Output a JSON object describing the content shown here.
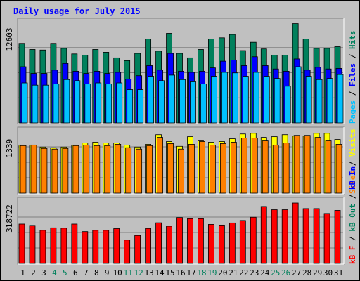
{
  "chart_data": {
    "type": "bar",
    "title": "Daily usage for July 2015",
    "categories": [
      "1",
      "2",
      "3",
      "4",
      "5",
      "6",
      "7",
      "8",
      "9",
      "10",
      "11",
      "12",
      "13",
      "14",
      "15",
      "16",
      "17",
      "18",
      "19",
      "20",
      "21",
      "22",
      "23",
      "24",
      "25",
      "26",
      "27",
      "28",
      "29",
      "30",
      "31"
    ],
    "weekend_days": [
      4,
      5,
      11,
      12,
      18,
      19,
      25,
      26
    ],
    "panels": [
      {
        "name": "hits-files-pages",
        "ymax_label": "12603",
        "ymax": 12603,
        "series": [
          {
            "name": "Hits",
            "color": "#00805c",
            "values": [
              9981,
              9213,
              9143,
              9981,
              9353,
              8654,
              8514,
              9213,
              8863,
              8165,
              7815,
              8724,
              10540,
              9003,
              11239,
              8724,
              8165,
              9213,
              10540,
              10680,
              11099,
              9074,
              10121,
              9283,
              8514,
              8514,
              12463,
              10540,
              9353,
              9353,
              9562
            ]
          },
          {
            "name": "Files",
            "color": "#0000ff",
            "values": [
              7047,
              6209,
              6209,
              6628,
              7466,
              6489,
              6209,
              6489,
              6209,
              6349,
              5511,
              5930,
              7186,
              6628,
              8723,
              6489,
              6349,
              6489,
              6907,
              7745,
              7885,
              7186,
              8304,
              7186,
              6768,
              6489,
              8025,
              6628,
              6978,
              6768,
              6838
            ]
          },
          {
            "name": "Pages",
            "color": "#00c0ff",
            "values": [
              5022,
              4742,
              4742,
              4882,
              5441,
              5302,
              4882,
              5022,
              4882,
              5022,
              4184,
              4184,
              5860,
              5302,
              6000,
              5441,
              5162,
              4882,
              5860,
              6349,
              6279,
              5860,
              6349,
              5860,
              5580,
              4603,
              7047,
              5860,
              5441,
              5580,
              6070
            ]
          }
        ]
      },
      {
        "name": "visits-sites",
        "ymax_label": "1339",
        "ymax": 1339,
        "series": [
          {
            "name": "Visits",
            "color": "#ffff00",
            "values": [
              1044,
              1044,
              1000,
              985,
              1000,
              1044,
              1089,
              1104,
              1089,
              1089,
              1044,
              1000,
              1059,
              1267,
              1119,
              1015,
              1223,
              1148,
              1104,
              1119,
              1178,
              1282,
              1297,
              1208,
              1223,
              1267,
              1237,
              1237,
              1297,
              1297,
              1163
            ]
          },
          {
            "name": "Sites",
            "color": "#ff8000",
            "values": [
              1030,
              1044,
              970,
              955,
              970,
              1030,
              1044,
              1030,
              1030,
              1059,
              985,
              955,
              1030,
              1208,
              1074,
              955,
              1059,
              1119,
              1044,
              1074,
              1104,
              1193,
              1193,
              1148,
              1044,
              1089,
              1252,
              1252,
              1208,
              1148,
              1059
            ]
          }
        ]
      },
      {
        "name": "kbin-kbout-kbf",
        "ymax_label": "318722",
        "ymax": 318722,
        "series": [
          {
            "name": "kB F",
            "color": "#ff0000",
            "values": [
              202864,
              196135,
              170909,
              183522,
              181840,
              202864,
              164182,
              170909,
              170909,
              179318,
              120454,
              143932,
              180159,
              209591,
              191926,
              236500,
              230613,
              230613,
              201182,
              197818,
              208750,
              221364,
              238182,
              293681,
              276864,
              276864,
              311409,
              282750,
              282750,
              257522,
              273500
            ]
          }
        ]
      }
    ],
    "legend_right": [
      [
        {
          "text": "Pages",
          "color": "#00c0ff"
        },
        {
          "text": " / ",
          "color": "#000000"
        },
        {
          "text": "Files",
          "color": "#0000ff"
        },
        {
          "text": " / ",
          "color": "#000000"
        },
        {
          "text": "Hits",
          "color": "#00805c"
        }
      ],
      [
        {
          "text": "Sites",
          "color": "#ff8000"
        },
        {
          "text": " / ",
          "color": "#000000"
        },
        {
          "text": "Visits",
          "color": "#ffff00"
        }
      ],
      [
        {
          "text": "kB F",
          "color": "#ff0000"
        },
        {
          "text": " / ",
          "color": "#000000"
        },
        {
          "text": "kB Out",
          "color": "#00805c"
        },
        {
          "text": " / ",
          "color": "#000000"
        },
        {
          "text": "kB In",
          "color": "#0000ff"
        }
      ]
    ],
    "colors": {
      "title": "#0000ff",
      "bg": "#c0c0c0",
      "weekday": "#000000",
      "weekend": "#00805c"
    },
    "grid": true
  }
}
